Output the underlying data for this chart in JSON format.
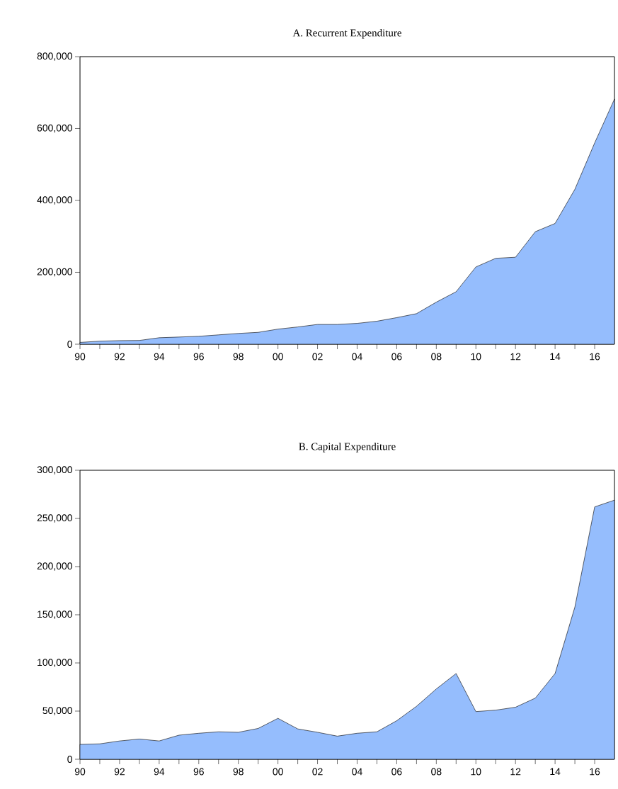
{
  "chart_data": [
    {
      "type": "area",
      "title": "A. Recurrent Expenditure",
      "x": [
        1990,
        1991,
        1992,
        1993,
        1994,
        1995,
        1996,
        1997,
        1998,
        1999,
        2000,
        2001,
        2002,
        2003,
        2004,
        2005,
        2006,
        2007,
        2008,
        2009,
        2010,
        2011,
        2012,
        2013,
        2014,
        2015,
        2016,
        2017
      ],
      "values": [
        5000,
        8500,
        10000,
        10500,
        18000,
        20000,
        22000,
        26000,
        30000,
        33000,
        42000,
        48000,
        55000,
        55000,
        58000,
        64000,
        74000,
        85000,
        117000,
        146000,
        215000,
        239000,
        242000,
        313000,
        336000,
        431000,
        560000,
        682000
      ],
      "color": "#95bdfd",
      "xlim": [
        1990,
        2017
      ],
      "xticks": [
        {
          "value": 1990,
          "label": "90"
        },
        {
          "value": 1991,
          "label": null
        },
        {
          "value": 1992,
          "label": "92"
        },
        {
          "value": 1993,
          "label": null
        },
        {
          "value": 1994,
          "label": "94"
        },
        {
          "value": 1995,
          "label": null
        },
        {
          "value": 1996,
          "label": "96"
        },
        {
          "value": 1997,
          "label": null
        },
        {
          "value": 1998,
          "label": "98"
        },
        {
          "value": 1999,
          "label": null
        },
        {
          "value": 2000,
          "label": "00"
        },
        {
          "value": 2001,
          "label": null
        },
        {
          "value": 2002,
          "label": "02"
        },
        {
          "value": 2003,
          "label": null
        },
        {
          "value": 2004,
          "label": "04"
        },
        {
          "value": 2005,
          "label": null
        },
        {
          "value": 2006,
          "label": "06"
        },
        {
          "value": 2007,
          "label": null
        },
        {
          "value": 2008,
          "label": "08"
        },
        {
          "value": 2009,
          "label": null
        },
        {
          "value": 2010,
          "label": "10"
        },
        {
          "value": 2011,
          "label": null
        },
        {
          "value": 2012,
          "label": "12"
        },
        {
          "value": 2013,
          "label": null
        },
        {
          "value": 2014,
          "label": "14"
        },
        {
          "value": 2015,
          "label": null
        },
        {
          "value": 2016,
          "label": "16"
        }
      ],
      "ylim": [
        0,
        800000
      ],
      "yticks": [
        0,
        {
          "value": 200000,
          "label": "200,000"
        },
        {
          "value": 400000,
          "label": "400,000"
        },
        {
          "value": 600000,
          "label": "600,000"
        },
        {
          "value": 800000,
          "label": "800,000"
        }
      ]
    },
    {
      "type": "area",
      "title": "B. Capital Expenditure",
      "x": [
        1990,
        1991,
        1992,
        1993,
        1994,
        1995,
        1996,
        1997,
        1998,
        1999,
        2000,
        2001,
        2002,
        2003,
        2004,
        2005,
        2006,
        2007,
        2008,
        2009,
        2010,
        2011,
        2012,
        2013,
        2014,
        2015,
        2016,
        2017
      ],
      "values": [
        15400,
        16000,
        19000,
        21000,
        19000,
        25000,
        27000,
        28500,
        28000,
        32000,
        42500,
        31500,
        28000,
        24000,
        27000,
        28500,
        40000,
        55000,
        73000,
        89000,
        49500,
        51000,
        54000,
        63500,
        89000,
        158000,
        262000,
        269000
      ],
      "color": "#95bdfd",
      "xlim": [
        1990,
        2017
      ],
      "xticks": [
        {
          "value": 1990,
          "label": "90"
        },
        {
          "value": 1991,
          "label": null
        },
        {
          "value": 1992,
          "label": "92"
        },
        {
          "value": 1993,
          "label": null
        },
        {
          "value": 1994,
          "label": "94"
        },
        {
          "value": 1995,
          "label": null
        },
        {
          "value": 1996,
          "label": "96"
        },
        {
          "value": 1997,
          "label": null
        },
        {
          "value": 1998,
          "label": "98"
        },
        {
          "value": 1999,
          "label": null
        },
        {
          "value": 2000,
          "label": "00"
        },
        {
          "value": 2001,
          "label": null
        },
        {
          "value": 2002,
          "label": "02"
        },
        {
          "value": 2003,
          "label": null
        },
        {
          "value": 2004,
          "label": "04"
        },
        {
          "value": 2005,
          "label": null
        },
        {
          "value": 2006,
          "label": "06"
        },
        {
          "value": 2007,
          "label": null
        },
        {
          "value": 2008,
          "label": "08"
        },
        {
          "value": 2009,
          "label": null
        },
        {
          "value": 2010,
          "label": "10"
        },
        {
          "value": 2011,
          "label": null
        },
        {
          "value": 2012,
          "label": "12"
        },
        {
          "value": 2013,
          "label": null
        },
        {
          "value": 2014,
          "label": "14"
        },
        {
          "value": 2015,
          "label": null
        },
        {
          "value": 2016,
          "label": "16"
        }
      ],
      "ylim": [
        0,
        300000
      ],
      "yticks": [
        0,
        {
          "value": 50000,
          "label": "50,000"
        },
        {
          "value": 100000,
          "label": "100,000"
        },
        {
          "value": 150000,
          "label": "150,000"
        },
        {
          "value": 200000,
          "label": "200,000"
        },
        {
          "value": 250000,
          "label": "250,000"
        },
        {
          "value": 300000,
          "label": "300,000"
        }
      ]
    }
  ]
}
